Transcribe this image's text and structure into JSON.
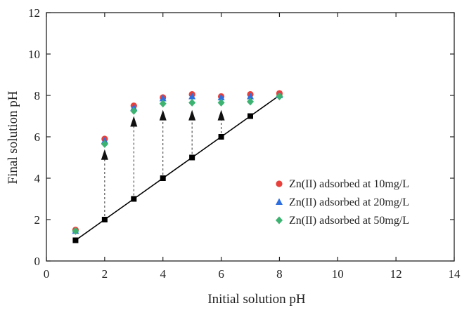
{
  "chart_data": {
    "type": "scatter",
    "title": "",
    "xlabel": "Initial solution pH",
    "ylabel": "Final solution pH",
    "xlim": [
      0,
      14
    ],
    "ylim": [
      0,
      12
    ],
    "xticks": [
      0,
      2,
      4,
      6,
      8,
      10,
      12,
      14
    ],
    "yticks": [
      0,
      2,
      4,
      6,
      8,
      10,
      12
    ],
    "grid": false,
    "legend_position": "right",
    "reference_line": {
      "x": [
        1,
        2,
        3,
        4,
        5,
        6,
        7,
        8
      ],
      "y": [
        1,
        2,
        3,
        4,
        5,
        6,
        7,
        8
      ],
      "color": "#000000",
      "marker": "square"
    },
    "arrows": [
      {
        "x": 2,
        "from": 2,
        "to": 5.4
      },
      {
        "x": 3,
        "from": 3,
        "to": 7.0
      },
      {
        "x": 4,
        "from": 4,
        "to": 7.3
      },
      {
        "x": 5,
        "from": 5,
        "to": 7.3
      },
      {
        "x": 6,
        "from": 6,
        "to": 7.3
      }
    ],
    "series": [
      {
        "name": "Zn(II) adsorbed at 10mg/L",
        "marker": "circle",
        "color": "#e8403a",
        "x": [
          1,
          2,
          3,
          4,
          5,
          6,
          7,
          8
        ],
        "y": [
          1.5,
          5.9,
          7.5,
          7.9,
          8.05,
          7.95,
          8.05,
          8.1
        ]
      },
      {
        "name": "Zn(II) adsorbed at 20mg/L",
        "marker": "triangle",
        "color": "#2e6fe0",
        "x": [
          1,
          2,
          3,
          4,
          5,
          6,
          7,
          8
        ],
        "y": [
          1.45,
          5.8,
          7.4,
          7.85,
          7.95,
          7.9,
          7.95,
          8.0
        ]
      },
      {
        "name": "Zn(II) adsorbed at 50mg/L",
        "marker": "diamond",
        "color": "#3cb371",
        "x": [
          1,
          2,
          3,
          4,
          5,
          6,
          7,
          8
        ],
        "y": [
          1.45,
          5.65,
          7.25,
          7.6,
          7.65,
          7.65,
          7.7,
          7.95
        ]
      }
    ]
  }
}
